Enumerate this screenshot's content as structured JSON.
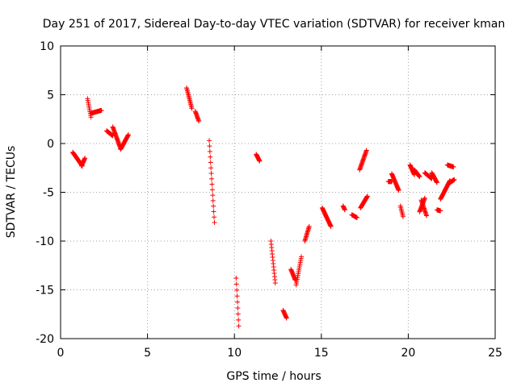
{
  "chart_data": {
    "type": "scatter",
    "title": "Day 251 of 2017, Sidereal Day-to-day VTEC variation (SDTVAR) for receiver kman",
    "xlabel": "GPS time / hours",
    "ylabel": "SDTVAR / TECUs",
    "xlim": [
      0,
      25
    ],
    "ylim": [
      -20,
      10
    ],
    "xticks": [
      0,
      5,
      10,
      15,
      20,
      25
    ],
    "yticks": [
      -20,
      -15,
      -10,
      -5,
      0,
      5,
      10
    ],
    "xtick_labels": [
      "0",
      "5",
      "10",
      "15",
      "20",
      "25"
    ],
    "ytick_labels": [
      "-20",
      "-15",
      "-10",
      "-5",
      "0",
      "5",
      "10"
    ],
    "grid": true,
    "marker": "+",
    "color": "#ff0000",
    "segments": [
      {
        "x": [
          0.7,
          1.25
        ],
        "y": [
          -0.9,
          -2.3
        ]
      },
      {
        "x": [
          1.2,
          1.4
        ],
        "y": [
          -2.3,
          -1.5
        ]
      },
      {
        "x": [
          1.55,
          1.75
        ],
        "y": [
          4.6,
          2.7
        ]
      },
      {
        "x": [
          1.75,
          2.35
        ],
        "y": [
          3.1,
          3.4
        ]
      },
      {
        "x": [
          2.65,
          3.0
        ],
        "y": [
          1.3,
          0.8
        ]
      },
      {
        "x": [
          3.0,
          3.45
        ],
        "y": [
          1.7,
          -0.5
        ]
      },
      {
        "x": [
          3.45,
          3.9
        ],
        "y": [
          -0.6,
          0.9
        ]
      },
      {
        "x": [
          7.25,
          7.55
        ],
        "y": [
          5.7,
          3.6
        ]
      },
      {
        "x": [
          7.75,
          7.95
        ],
        "y": [
          3.3,
          2.3
        ]
      },
      {
        "x": [
          8.55,
          8.85
        ],
        "y": [
          0.3,
          -8.1
        ]
      },
      {
        "x": [
          10.1,
          10.25
        ],
        "y": [
          -13.8,
          -18.7
        ]
      },
      {
        "x": [
          11.25,
          11.45
        ],
        "y": [
          -1.1,
          -1.8
        ]
      },
      {
        "x": [
          12.1,
          12.35
        ],
        "y": [
          -10.0,
          -14.3
        ]
      },
      {
        "x": [
          12.8,
          13.0
        ],
        "y": [
          -17.1,
          -17.9
        ]
      },
      {
        "x": [
          13.25,
          13.5
        ],
        "y": [
          -12.9,
          -14.0
        ]
      },
      {
        "x": [
          13.55,
          13.85
        ],
        "y": [
          -14.5,
          -11.6
        ]
      },
      {
        "x": [
          14.05,
          14.3
        ],
        "y": [
          -10.0,
          -8.5
        ]
      },
      {
        "x": [
          15.05,
          15.55
        ],
        "y": [
          -6.6,
          -8.5
        ]
      },
      {
        "x": [
          16.25,
          16.35
        ],
        "y": [
          -6.4,
          -6.8
        ]
      },
      {
        "x": [
          16.75,
          17.05
        ],
        "y": [
          -7.3,
          -7.6
        ]
      },
      {
        "x": [
          17.2,
          17.6
        ],
        "y": [
          -2.7,
          -0.7
        ]
      },
      {
        "x": [
          17.25,
          17.65
        ],
        "y": [
          -6.6,
          -5.4
        ]
      },
      {
        "x": [
          18.85,
          19.05
        ],
        "y": [
          -3.9,
          -3.9
        ]
      },
      {
        "x": [
          19.05,
          19.45
        ],
        "y": [
          -3.1,
          -4.8
        ]
      },
      {
        "x": [
          19.55,
          19.7
        ],
        "y": [
          -6.4,
          -7.5
        ]
      },
      {
        "x": [
          20.1,
          20.35
        ],
        "y": [
          -2.2,
          -3.2
        ]
      },
      {
        "x": [
          20.35,
          20.65
        ],
        "y": [
          -2.7,
          -3.4
        ]
      },
      {
        "x": [
          20.65,
          20.95
        ],
        "y": [
          -7.0,
          -5.6
        ]
      },
      {
        "x": [
          20.75,
          21.05
        ],
        "y": [
          -5.8,
          -7.4
        ]
      },
      {
        "x": [
          20.95,
          21.35
        ],
        "y": [
          -3.0,
          -3.6
        ]
      },
      {
        "x": [
          21.35,
          21.65
        ],
        "y": [
          -3.0,
          -4.0
        ]
      },
      {
        "x": [
          21.65,
          21.85
        ],
        "y": [
          -6.8,
          -6.9
        ]
      },
      {
        "x": [
          21.85,
          22.4
        ],
        "y": [
          -5.7,
          -3.8
        ]
      },
      {
        "x": [
          22.25,
          22.6
        ],
        "y": [
          -2.2,
          -2.4
        ]
      },
      {
        "x": [
          22.4,
          22.65
        ],
        "y": [
          -4.0,
          -3.7
        ]
      }
    ]
  }
}
